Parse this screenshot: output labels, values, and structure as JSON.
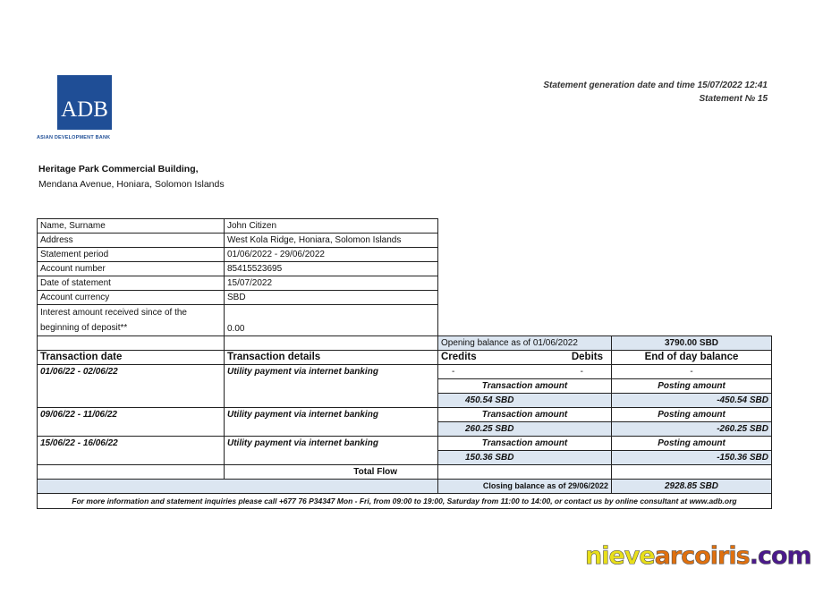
{
  "bank": {
    "logo_text": "ADB",
    "logo_subtitle": "ASIAN DEVELOPMENT BANK",
    "address_line1": "Heritage Park Commercial Building,",
    "address_line2": "Mendana Avenue, Honiara, Solomon Islands",
    "brand_color": "#1f4e96"
  },
  "header": {
    "generated": "Statement generation date and time 15/07/2022 12:41",
    "statement_no": "Statement № 15"
  },
  "info": [
    {
      "label": "Name, Surname",
      "value": "John Citizen"
    },
    {
      "label": "Address",
      "value": "West Kola Ridge, Honiara,  Solomon Islands"
    },
    {
      "label": "Statement period",
      "value": "01/06/2022 - 29/06/2022"
    },
    {
      "label": " Account number",
      "value": "85415523695"
    },
    {
      "label": "Date of statement",
      "value": "15/07/2022"
    },
    {
      "label": "Account currency",
      "value": "SBD"
    },
    {
      "label": "Interest amount received since of the beginning of deposit**",
      "value": "0.00"
    }
  ],
  "opening": {
    "label": "Opening   balance as of 01/06/2022",
    "value": "3790.00 SBD"
  },
  "columns": {
    "date": "Transaction date",
    "details": "Transaction details",
    "credits": "Credits",
    "debits": "Debits",
    "balance": "End of day balance"
  },
  "first_row": {
    "credits": "-",
    "debits": "-",
    "balance": "-"
  },
  "transactions": [
    {
      "date": "01/06/22 - 02/06/22",
      "details": "Utility payment via internet banking",
      "amount_label": "Transaction amount",
      "posting_label": "Posting amount",
      "amount": "450.54  SBD",
      "posting": "-450.54  SBD"
    },
    {
      "date": "09/06/22 - 11/06/22",
      "details": "Utility payment via internet banking",
      "amount_label": "Transaction amount",
      "posting_label": "Posting amount",
      "amount": "260.25  SBD",
      "posting": "-260.25  SBD"
    },
    {
      "date": "15/06/22 - 16/06/22",
      "details": "Utility  payment via internet banking",
      "amount_label": "Transaction amount",
      "posting_label": "Posting amount",
      "amount": "150.36  SBD",
      "posting": "-150.36  SBD"
    }
  ],
  "total_flow": "Total Flow",
  "closing": {
    "label": "Closing balance as of 29/06/2022",
    "value": "2928.85  SBD"
  },
  "footer": "For more information and statement inquiries please call +677 76 P34347 Mon - Fri, from 09:00 to 19:00, Saturday from 11:00 to 14:00, or contact us by online consultant at www.adb.org",
  "watermark": {
    "part1": "nieve",
    "part2": "arcoiris",
    "part3": ".com"
  }
}
